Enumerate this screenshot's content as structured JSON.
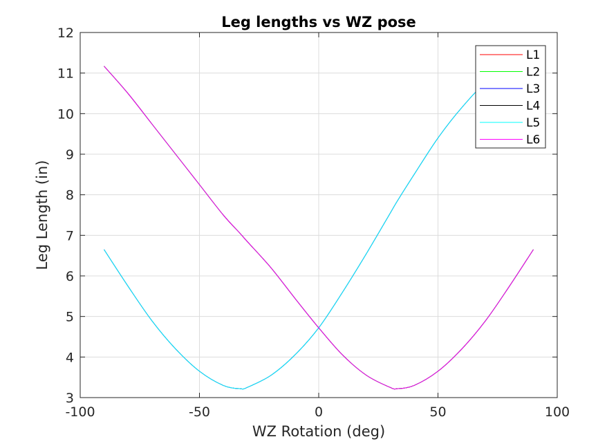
{
  "chart_data": {
    "type": "line",
    "title": "Leg lengths vs WZ pose",
    "xlabel": "WZ Rotation (deg)",
    "ylabel": "Leg Length (in)",
    "xlim": [
      -100,
      100
    ],
    "ylim": [
      3,
      12
    ],
    "xticks": [
      -100,
      -50,
      0,
      50,
      100
    ],
    "yticks": [
      3,
      4,
      5,
      6,
      7,
      8,
      9,
      10,
      11,
      12
    ],
    "grid": true,
    "legend_position": "top-right",
    "series": [
      {
        "name": "L1",
        "color": "#ff0000",
        "x": [
          -90,
          -80,
          -70,
          -60,
          -50,
          -40,
          -33,
          -30,
          -20,
          -10,
          0,
          10,
          20,
          30,
          33,
          40,
          50,
          60,
          70,
          80,
          90
        ],
        "values": [
          6.65,
          5.75,
          4.9,
          4.2,
          3.65,
          3.3,
          3.22,
          3.25,
          3.55,
          4.05,
          4.72,
          5.6,
          6.55,
          7.55,
          7.85,
          8.5,
          9.4,
          10.15,
          10.75,
          11.0,
          11.15
        ]
      },
      {
        "name": "L2",
        "color": "#00ff00",
        "x": [
          -90,
          -80,
          -70,
          -60,
          -50,
          -40,
          -33,
          -30,
          -20,
          -10,
          0,
          10,
          20,
          30,
          33,
          40,
          50,
          60,
          70,
          80,
          90
        ],
        "values": [
          11.17,
          10.5,
          9.75,
          9.0,
          8.25,
          7.5,
          7.05,
          6.85,
          6.2,
          5.45,
          4.72,
          4.05,
          3.55,
          3.25,
          3.22,
          3.3,
          3.65,
          4.2,
          4.9,
          5.75,
          6.65
        ]
      },
      {
        "name": "L3",
        "color": "#0000ff",
        "x": [
          -90,
          -80,
          -70,
          -60,
          -50,
          -40,
          -33,
          -30,
          -20,
          -10,
          0,
          10,
          20,
          30,
          33,
          40,
          50,
          60,
          70,
          80,
          90
        ],
        "values": [
          6.65,
          5.75,
          4.9,
          4.2,
          3.65,
          3.3,
          3.22,
          3.25,
          3.55,
          4.05,
          4.72,
          5.6,
          6.55,
          7.55,
          7.85,
          8.5,
          9.4,
          10.15,
          10.75,
          11.0,
          11.15
        ]
      },
      {
        "name": "L4",
        "color": "#000000",
        "x": [
          -90,
          -80,
          -70,
          -60,
          -50,
          -40,
          -33,
          -30,
          -20,
          -10,
          0,
          10,
          20,
          30,
          33,
          40,
          50,
          60,
          70,
          80,
          90
        ],
        "values": [
          11.17,
          10.5,
          9.75,
          9.0,
          8.25,
          7.5,
          7.05,
          6.85,
          6.2,
          5.45,
          4.72,
          4.05,
          3.55,
          3.25,
          3.22,
          3.3,
          3.65,
          4.2,
          4.9,
          5.75,
          6.65
        ]
      },
      {
        "name": "L5",
        "color": "#00ffff",
        "x": [
          -90,
          -80,
          -70,
          -60,
          -50,
          -40,
          -33,
          -30,
          -20,
          -10,
          0,
          10,
          20,
          30,
          33,
          40,
          50,
          60,
          70,
          80,
          90
        ],
        "values": [
          6.65,
          5.75,
          4.9,
          4.2,
          3.65,
          3.3,
          3.22,
          3.25,
          3.55,
          4.05,
          4.72,
          5.6,
          6.55,
          7.55,
          7.85,
          8.5,
          9.4,
          10.15,
          10.75,
          11.0,
          11.15
        ]
      },
      {
        "name": "L6",
        "color": "#ff00ff",
        "x": [
          -90,
          -80,
          -70,
          -60,
          -50,
          -40,
          -33,
          -30,
          -20,
          -10,
          0,
          10,
          20,
          30,
          33,
          40,
          50,
          60,
          70,
          80,
          90
        ],
        "values": [
          11.17,
          10.5,
          9.75,
          9.0,
          8.25,
          7.5,
          7.05,
          6.85,
          6.2,
          5.45,
          4.72,
          4.05,
          3.55,
          3.25,
          3.22,
          3.3,
          3.65,
          4.2,
          4.9,
          5.75,
          6.65
        ]
      }
    ]
  }
}
